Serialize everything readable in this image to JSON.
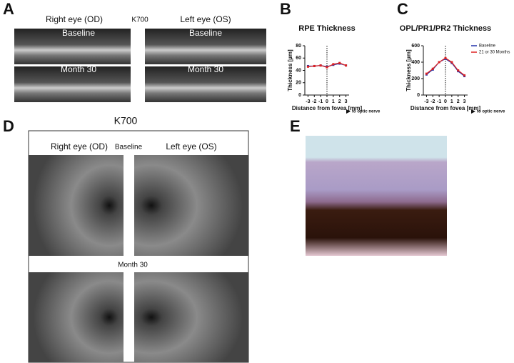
{
  "panels": {
    "a": {
      "label": "A",
      "left_title": "Right eye (OD)",
      "center_title": "K700",
      "right_title": "Left eye (OS)",
      "top_left": "Baseline",
      "top_right": "Baseline",
      "bottom_left": "Month 30",
      "bottom_right": "Month 30"
    },
    "b": {
      "label": "B"
    },
    "c": {
      "label": "C"
    },
    "d": {
      "label": "D",
      "title": "K700",
      "left_title": "Right eye (OD)",
      "center_title": "Baseline",
      "right_title": "Left eye (OS)",
      "middle_title": "Month 30"
    },
    "e": {
      "label": "E"
    }
  },
  "chart_data": [
    {
      "type": "line",
      "title": "RPE Thickness",
      "x_label": "Distance from fovea [mm]",
      "y_label": "Thickness [µm]",
      "annotation": "to optic nerve",
      "x": [
        -3,
        -2,
        -1,
        0,
        1,
        2,
        3
      ],
      "xlim": [
        -3.5,
        3.5
      ],
      "xticks": [
        -3,
        -2,
        -1,
        0,
        1,
        2,
        3
      ],
      "ylim": [
        0,
        80
      ],
      "yticks": [
        0,
        20,
        40,
        60,
        80
      ],
      "series": [
        {
          "color": "#2233aa",
          "values": [
            47,
            47,
            48,
            46,
            49,
            51,
            48
          ]
        },
        {
          "color": "#dd2222",
          "values": [
            46,
            47,
            48,
            45,
            50,
            52,
            48
          ]
        }
      ]
    },
    {
      "type": "line",
      "title": "OPL/PR1/PR2 Thickness",
      "x_label": "Distance from fovea [mm]",
      "y_label": "Thickness [µm]",
      "annotation": "to optic nerve",
      "x": [
        -3,
        -2,
        -1,
        0,
        1,
        2,
        3
      ],
      "xlim": [
        -3.5,
        3.5
      ],
      "xticks": [
        -3,
        -2,
        -1,
        0,
        1,
        2,
        3
      ],
      "ylim": [
        0,
        600
      ],
      "yticks": [
        0,
        200,
        400,
        600
      ],
      "series": [
        {
          "name": "Baseline",
          "color": "#2233aa",
          "values": [
            250,
            310,
            400,
            440,
            390,
            290,
            230
          ]
        },
        {
          "name": "21 or 30 Months",
          "color": "#dd2222",
          "values": [
            260,
            320,
            400,
            450,
            400,
            300,
            240
          ]
        }
      ]
    }
  ]
}
